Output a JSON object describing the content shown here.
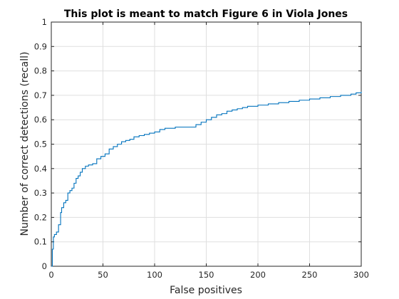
{
  "chart_data": {
    "type": "line",
    "title": "This plot is meant to match Figure 6 in Viola Jones",
    "xlabel": "False positives",
    "ylabel": "Number of correct detections (recall)",
    "xlim": [
      0,
      300
    ],
    "ylim": [
      0,
      1
    ],
    "xticks": [
      0,
      50,
      100,
      150,
      200,
      250,
      300
    ],
    "xtick_labels": [
      "0",
      "50",
      "100",
      "150",
      "200",
      "250",
      "300"
    ],
    "yticks": [
      0,
      0.1,
      0.2,
      0.3,
      0.4,
      0.5,
      0.6,
      0.7,
      0.8,
      0.9,
      1
    ],
    "ytick_labels": [
      "0",
      "0.1",
      "0.2",
      "0.3",
      "0.4",
      "0.5",
      "0.6",
      "0.7",
      "0.8",
      "0.9",
      "1"
    ],
    "grid": true,
    "line_color": "#0072bd",
    "series": [
      {
        "style": "step",
        "x": [
          0,
          1,
          2,
          3,
          5,
          7,
          9,
          10,
          12,
          14,
          16,
          18,
          20,
          22,
          24,
          26,
          28,
          30,
          33,
          36,
          40,
          44,
          48,
          52,
          56,
          60,
          64,
          68,
          72,
          76,
          80,
          85,
          90,
          95,
          100,
          105,
          110,
          115,
          120,
          130,
          140,
          145,
          150,
          155,
          160,
          165,
          170,
          175,
          180,
          185,
          190,
          200,
          210,
          220,
          230,
          240,
          250,
          260,
          270,
          280,
          290,
          295,
          300
        ],
        "y": [
          0,
          0.07,
          0.12,
          0.13,
          0.14,
          0.17,
          0.22,
          0.24,
          0.26,
          0.27,
          0.3,
          0.31,
          0.32,
          0.34,
          0.36,
          0.37,
          0.385,
          0.4,
          0.41,
          0.415,
          0.42,
          0.44,
          0.45,
          0.46,
          0.48,
          0.49,
          0.5,
          0.51,
          0.515,
          0.52,
          0.53,
          0.535,
          0.54,
          0.545,
          0.55,
          0.56,
          0.565,
          0.565,
          0.57,
          0.57,
          0.58,
          0.59,
          0.6,
          0.61,
          0.62,
          0.625,
          0.635,
          0.64,
          0.645,
          0.65,
          0.655,
          0.66,
          0.665,
          0.67,
          0.675,
          0.68,
          0.685,
          0.69,
          0.695,
          0.7,
          0.705,
          0.71,
          0.715
        ]
      }
    ]
  }
}
